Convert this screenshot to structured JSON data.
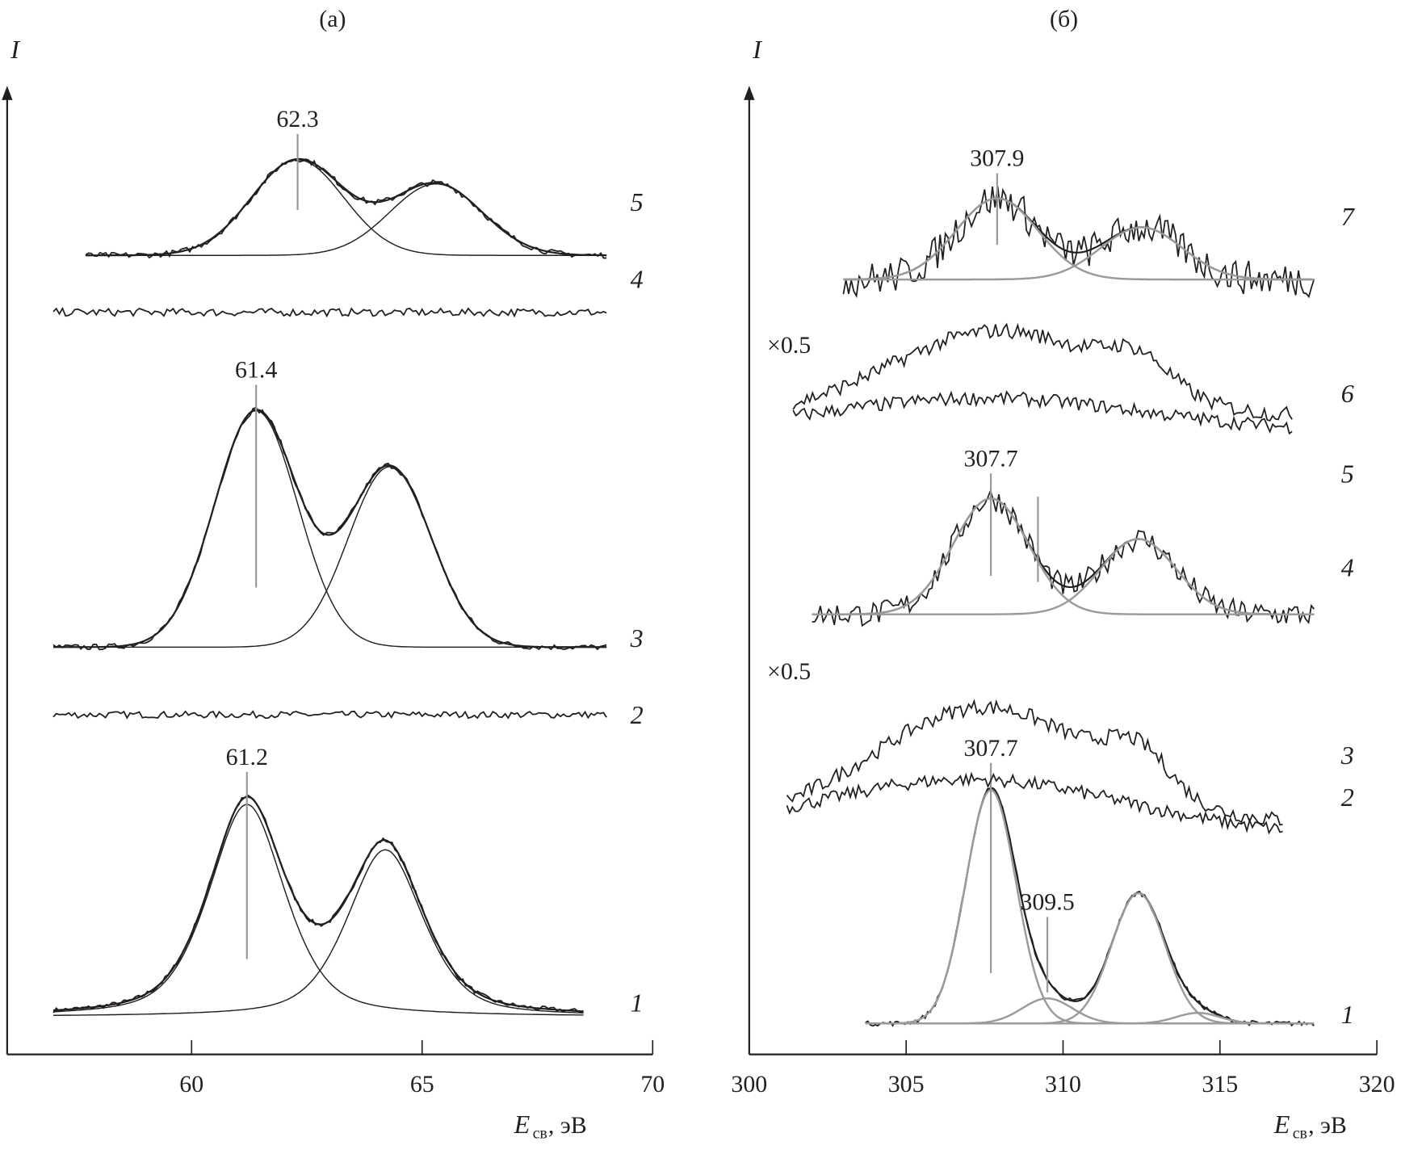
{
  "chart_data": [
    {
      "type": "line",
      "panel_title": "(а)",
      "ylabel": "I",
      "xlabel_main": "E",
      "xlabel_sub": "св",
      "xlabel_unit": ", эВ",
      "xlim": [
        56,
        70
      ],
      "xticks": [
        60,
        65,
        70
      ],
      "tick_labels": [
        "60",
        "65",
        "70"
      ],
      "ylim": [
        0,
        100
      ],
      "intensity_units": "arbitrary",
      "series": [
        {
          "name": "1",
          "x_range": [
            57,
            68.5
          ],
          "baseline": 3.9,
          "noise": 0.25,
          "shape": "lorentz-gauss",
          "peaks": [
            {
              "center": 61.2,
              "height": 22,
              "width": 0.85
            },
            {
              "center": 64.2,
              "height": 17.3,
              "width": 0.85
            }
          ],
          "marker": {
            "x": 61.2,
            "label": "61.2"
          }
        },
        {
          "name": "2",
          "x_range": [
            57,
            69
          ],
          "baseline": 35.2,
          "noise": 0.35,
          "peaks": []
        },
        {
          "name": "3",
          "x_range": [
            57,
            69
          ],
          "baseline": 42.2,
          "noise": 0.3,
          "shape": "gauss",
          "peaks": [
            {
              "center": 61.4,
              "height": 24.5,
              "width": 0.9
            },
            {
              "center": 64.3,
              "height": 18.7,
              "width": 0.9
            }
          ],
          "marker": {
            "x": 61.4,
            "label": "61.4"
          }
        },
        {
          "name": "4",
          "x_range": [
            57,
            69
          ],
          "baseline": 76.9,
          "noise": 0.4,
          "peaks": []
        },
        {
          "name": "5",
          "x_range": [
            57.7,
            69
          ],
          "baseline": 82.8,
          "noise": 0.3,
          "shape": "gauss",
          "peaks": [
            {
              "center": 62.3,
              "height": 9.9,
              "width": 1.0
            },
            {
              "center": 65.3,
              "height": 7.4,
              "width": 1.0
            }
          ],
          "marker": {
            "x": 62.3,
            "label": "62.3"
          }
        }
      ]
    },
    {
      "type": "line",
      "panel_title": "(б)",
      "ylabel": "I",
      "xlabel_main": "E",
      "xlabel_sub": "св",
      "xlabel_unit": ", эВ",
      "xlim": [
        300,
        320
      ],
      "xticks": [
        300,
        305,
        310,
        315,
        320
      ],
      "tick_labels": [
        "300",
        "305",
        "310",
        "315",
        "320"
      ],
      "ylim": [
        0,
        100
      ],
      "intensity_units": "arbitrary",
      "series": [
        {
          "name": "1",
          "x_range": [
            303.7,
            318
          ],
          "baseline": 3.2,
          "noise": 0.25,
          "shape": "gauss",
          "peaks": [
            {
              "center": 307.7,
              "height": 24.2,
              "width": 0.8
            },
            {
              "center": 309.5,
              "height": 2.6,
              "width": 0.8
            },
            {
              "center": 312.4,
              "height": 13.5,
              "width": 0.85
            },
            {
              "center": 314.3,
              "height": 1.1,
              "width": 0.7
            }
          ],
          "markers": [
            {
              "x": 307.7,
              "label": "307.7"
            },
            {
              "x": 309.5,
              "label": "309.5"
            }
          ]
        },
        {
          "name": "2",
          "x_range": [
            301.2,
            317
          ],
          "baseline": 22.5,
          "noise": 0.7,
          "broad": {
            "center": 307,
            "height": 6,
            "width": 5
          }
        },
        {
          "name": "3",
          "scale_label": "×0.5",
          "x_range": [
            301.2,
            317
          ],
          "baseline": 24,
          "noise": 0.8,
          "broad": {
            "center": 307.5,
            "height": 12,
            "width": 3.5
          },
          "peaks": [
            {
              "center": 312.4,
              "height": 4,
              "width": 1
            }
          ]
        },
        {
          "name": "4",
          "x_range": [
            302,
            318
          ],
          "baseline": 45.6,
          "noise": 1.3,
          "shape": "gauss",
          "peaks": [
            {
              "center": 307.7,
              "height": 12,
              "width": 1.2
            },
            {
              "center": 312.4,
              "height": 7.8,
              "width": 1.2
            }
          ],
          "markers": [
            {
              "x": 307.7,
              "label": "307.7"
            },
            {
              "x": 309.2,
              "label": ""
            }
          ]
        },
        {
          "name": "5",
          "x_range": [
            301.4,
            317.3
          ],
          "baseline": 64.5,
          "noise": 0.7,
          "broad": {
            "center": 307.5,
            "height": 3.5,
            "width": 5
          }
        },
        {
          "name": "6",
          "scale_label": "×0.5",
          "x_range": [
            301.4,
            317.3
          ],
          "baseline": 66,
          "noise": 0.8,
          "broad": {
            "center": 308,
            "height": 9,
            "width": 3.5
          },
          "peaks": [
            {
              "center": 312.4,
              "height": 3,
              "width": 1
            }
          ]
        },
        {
          "name": "7",
          "x_range": [
            303,
            318
          ],
          "baseline": 80.3,
          "noise": 1.8,
          "shape": "gauss",
          "peaks": [
            {
              "center": 307.9,
              "height": 8.4,
              "width": 1.3
            },
            {
              "center": 312.5,
              "height": 5.4,
              "width": 1.3
            }
          ],
          "markers": [
            {
              "x": 307.9,
              "label": "307.9"
            }
          ]
        }
      ]
    }
  ]
}
